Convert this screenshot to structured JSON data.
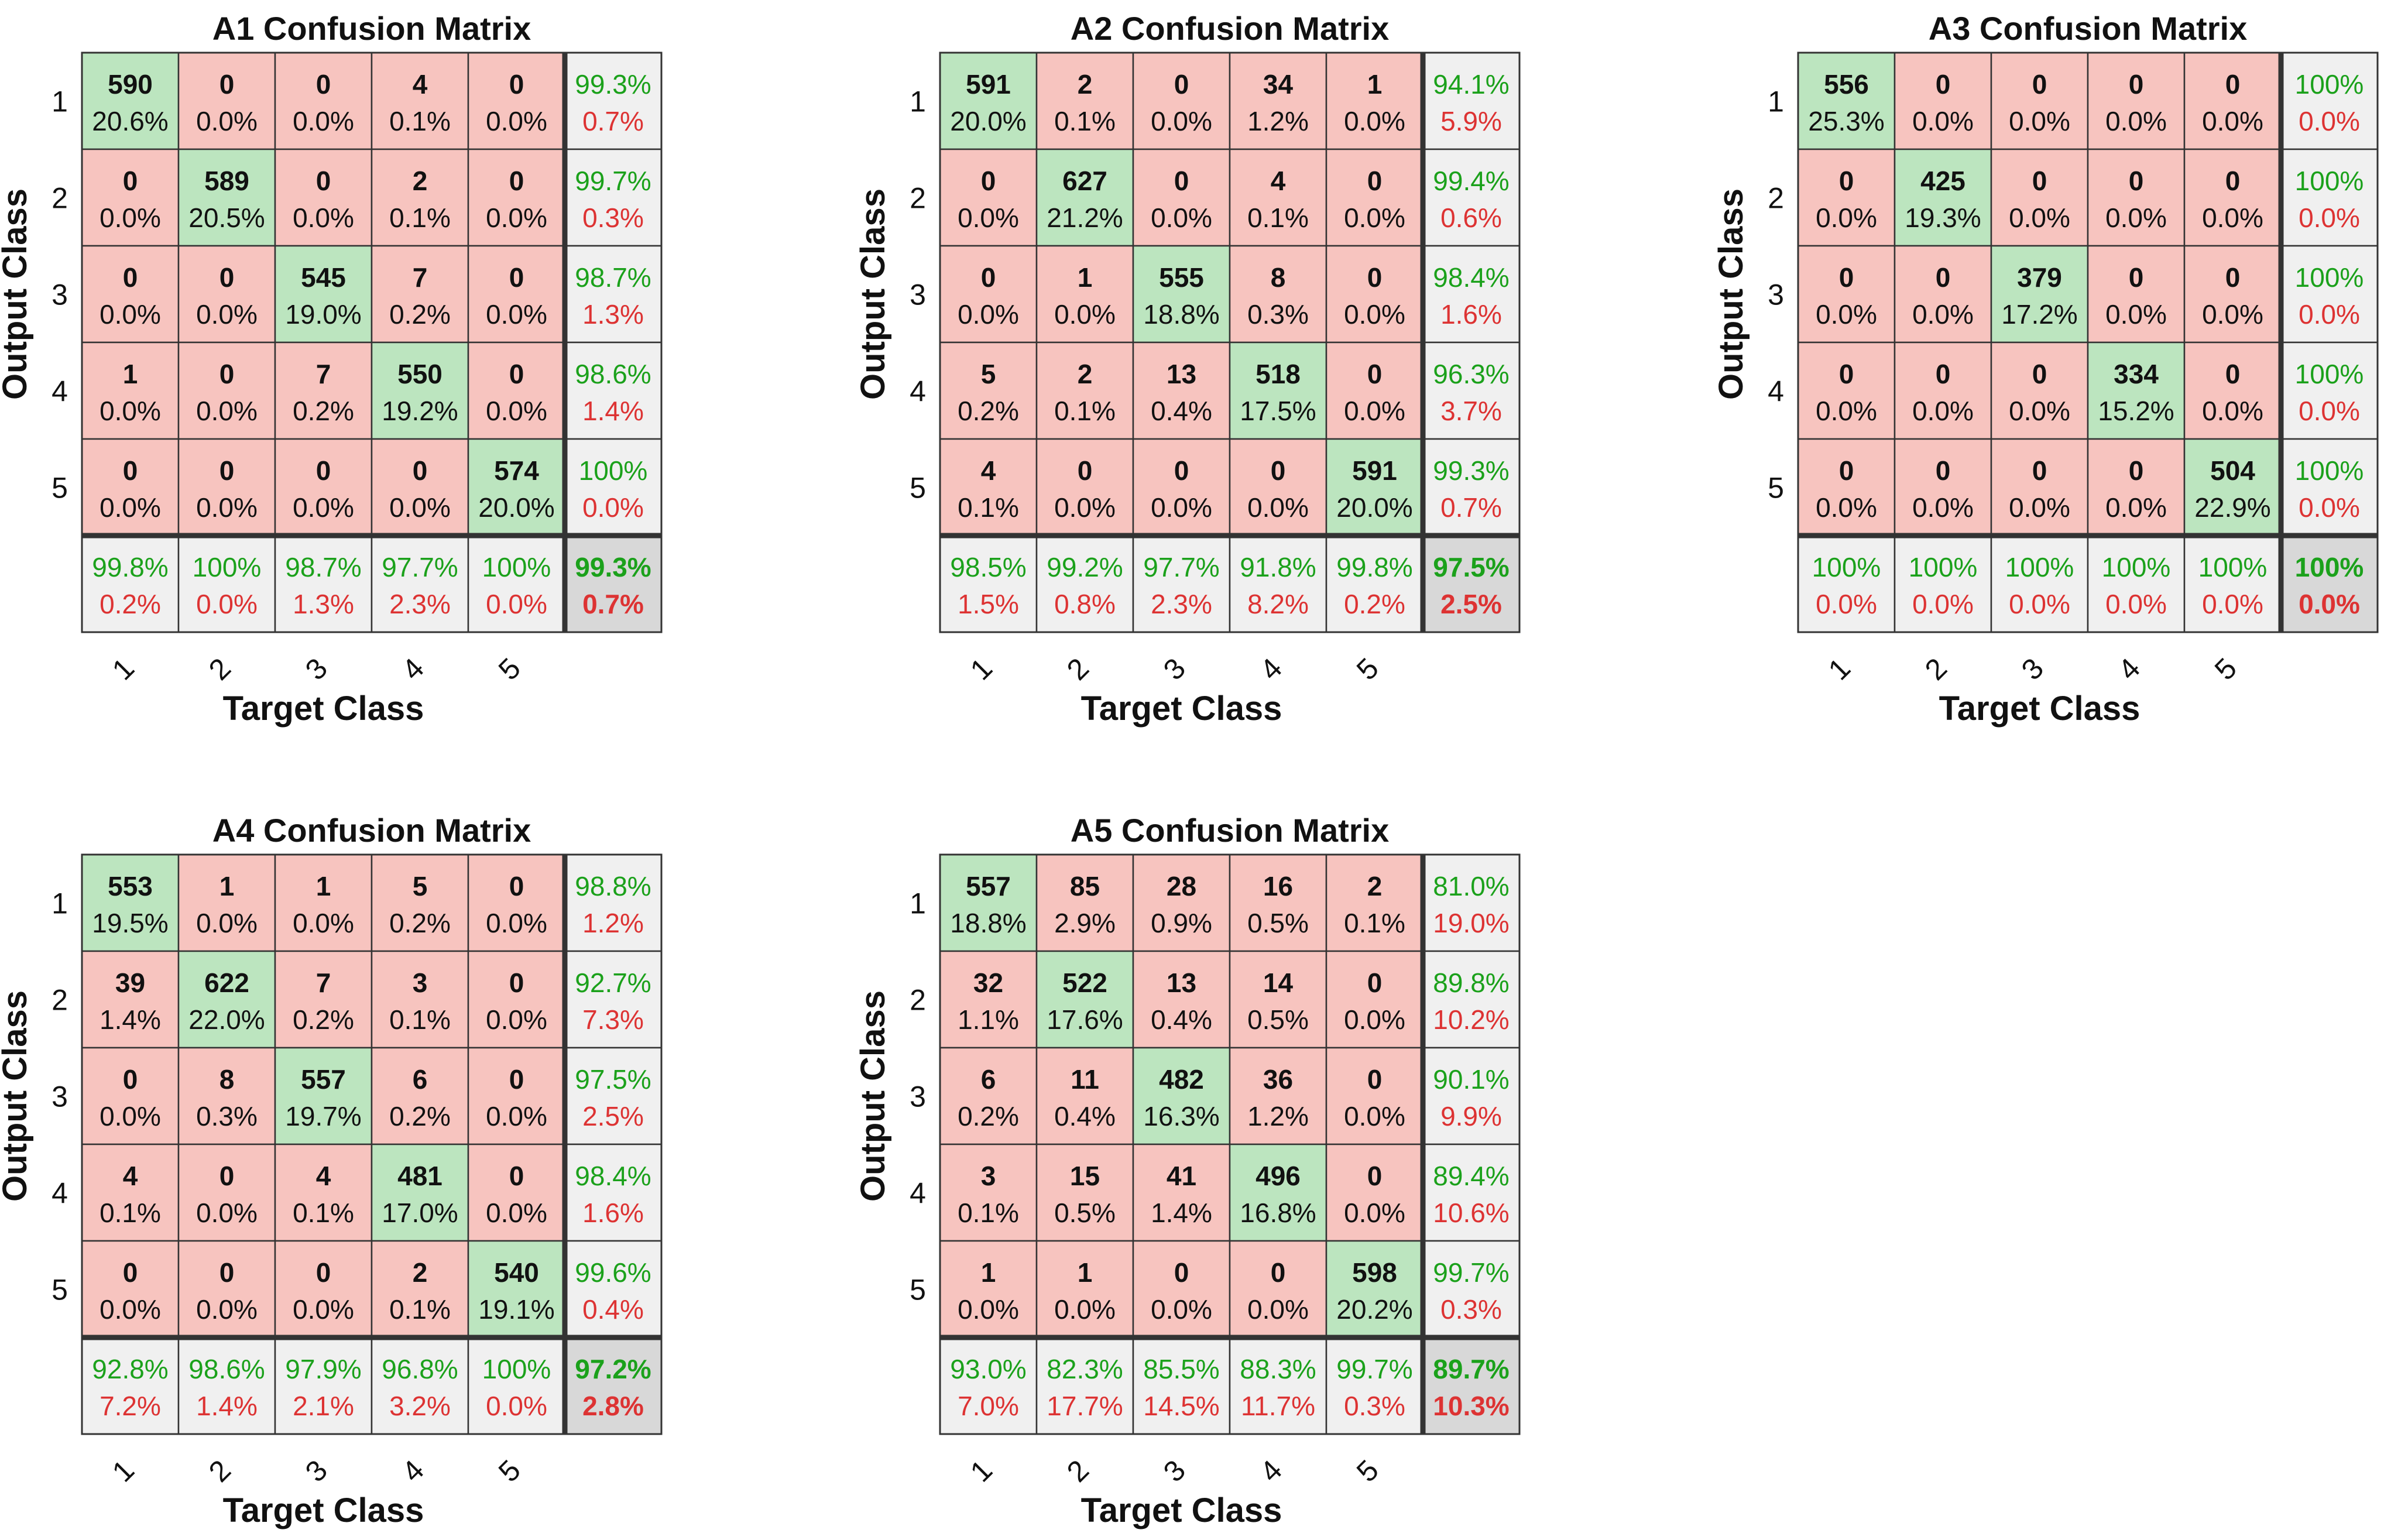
{
  "colors": {
    "diag_bg": "#bce5bf",
    "off_bg": "#f7c4bf",
    "summary_bg": "#f0f0f0",
    "total_bg": "#d8d8d8",
    "good_text": "#1ba11b",
    "bad_text": "#dd3333",
    "text": "#111111",
    "grid": "#333333"
  },
  "chart_data": [
    {
      "type": "table",
      "title": "A1 Confusion Matrix",
      "xlabel": "Target Class",
      "ylabel": "Output Class",
      "classes": [
        "1",
        "2",
        "3",
        "4",
        "5"
      ],
      "counts": [
        [
          590,
          0,
          0,
          4,
          0
        ],
        [
          0,
          589,
          0,
          2,
          0
        ],
        [
          0,
          0,
          545,
          7,
          0
        ],
        [
          1,
          0,
          7,
          550,
          0
        ],
        [
          0,
          0,
          0,
          0,
          574
        ]
      ],
      "percents": [
        [
          "20.6%",
          "0.0%",
          "0.0%",
          "0.1%",
          "0.0%"
        ],
        [
          "0.0%",
          "20.5%",
          "0.0%",
          "0.1%",
          "0.0%"
        ],
        [
          "0.0%",
          "0.0%",
          "19.0%",
          "0.2%",
          "0.0%"
        ],
        [
          "0.0%",
          "0.0%",
          "0.2%",
          "19.2%",
          "0.0%"
        ],
        [
          "0.0%",
          "0.0%",
          "0.0%",
          "0.0%",
          "20.0%"
        ]
      ],
      "row_summary": [
        [
          "99.3%",
          "0.7%"
        ],
        [
          "99.7%",
          "0.3%"
        ],
        [
          "98.7%",
          "1.3%"
        ],
        [
          "98.6%",
          "1.4%"
        ],
        [
          "100%",
          "0.0%"
        ]
      ],
      "col_summary": [
        [
          "99.8%",
          "0.2%"
        ],
        [
          "100%",
          "0.0%"
        ],
        [
          "98.7%",
          "1.3%"
        ],
        [
          "97.7%",
          "2.3%"
        ],
        [
          "100%",
          "0.0%"
        ]
      ],
      "overall": [
        "99.3%",
        "0.7%"
      ]
    },
    {
      "type": "table",
      "title": "A2 Confusion Matrix",
      "xlabel": "Target Class",
      "ylabel": "Output Class",
      "classes": [
        "1",
        "2",
        "3",
        "4",
        "5"
      ],
      "counts": [
        [
          591,
          2,
          0,
          34,
          1
        ],
        [
          0,
          627,
          0,
          4,
          0
        ],
        [
          0,
          1,
          555,
          8,
          0
        ],
        [
          5,
          2,
          13,
          518,
          0
        ],
        [
          4,
          0,
          0,
          0,
          591
        ]
      ],
      "percents": [
        [
          "20.0%",
          "0.1%",
          "0.0%",
          "1.2%",
          "0.0%"
        ],
        [
          "0.0%",
          "21.2%",
          "0.0%",
          "0.1%",
          "0.0%"
        ],
        [
          "0.0%",
          "0.0%",
          "18.8%",
          "0.3%",
          "0.0%"
        ],
        [
          "0.2%",
          "0.1%",
          "0.4%",
          "17.5%",
          "0.0%"
        ],
        [
          "0.1%",
          "0.0%",
          "0.0%",
          "0.0%",
          "20.0%"
        ]
      ],
      "row_summary": [
        [
          "94.1%",
          "5.9%"
        ],
        [
          "99.4%",
          "0.6%"
        ],
        [
          "98.4%",
          "1.6%"
        ],
        [
          "96.3%",
          "3.7%"
        ],
        [
          "99.3%",
          "0.7%"
        ]
      ],
      "col_summary": [
        [
          "98.5%",
          "1.5%"
        ],
        [
          "99.2%",
          "0.8%"
        ],
        [
          "97.7%",
          "2.3%"
        ],
        [
          "91.8%",
          "8.2%"
        ],
        [
          "99.8%",
          "0.2%"
        ]
      ],
      "overall": [
        "97.5%",
        "2.5%"
      ]
    },
    {
      "type": "table",
      "title": "A3 Confusion Matrix",
      "xlabel": "Target Class",
      "ylabel": "Output Class",
      "classes": [
        "1",
        "2",
        "3",
        "4",
        "5"
      ],
      "counts": [
        [
          556,
          0,
          0,
          0,
          0
        ],
        [
          0,
          425,
          0,
          0,
          0
        ],
        [
          0,
          0,
          379,
          0,
          0
        ],
        [
          0,
          0,
          0,
          334,
          0
        ],
        [
          0,
          0,
          0,
          0,
          504
        ]
      ],
      "percents": [
        [
          "25.3%",
          "0.0%",
          "0.0%",
          "0.0%",
          "0.0%"
        ],
        [
          "0.0%",
          "19.3%",
          "0.0%",
          "0.0%",
          "0.0%"
        ],
        [
          "0.0%",
          "0.0%",
          "17.2%",
          "0.0%",
          "0.0%"
        ],
        [
          "0.0%",
          "0.0%",
          "0.0%",
          "15.2%",
          "0.0%"
        ],
        [
          "0.0%",
          "0.0%",
          "0.0%",
          "0.0%",
          "22.9%"
        ]
      ],
      "row_summary": [
        [
          "100%",
          "0.0%"
        ],
        [
          "100%",
          "0.0%"
        ],
        [
          "100%",
          "0.0%"
        ],
        [
          "100%",
          "0.0%"
        ],
        [
          "100%",
          "0.0%"
        ]
      ],
      "col_summary": [
        [
          "100%",
          "0.0%"
        ],
        [
          "100%",
          "0.0%"
        ],
        [
          "100%",
          "0.0%"
        ],
        [
          "100%",
          "0.0%"
        ],
        [
          "100%",
          "0.0%"
        ]
      ],
      "overall": [
        "100%",
        "0.0%"
      ]
    },
    {
      "type": "table",
      "title": "A4 Confusion Matrix",
      "xlabel": "Target Class",
      "ylabel": "Output Class",
      "classes": [
        "1",
        "2",
        "3",
        "4",
        "5"
      ],
      "counts": [
        [
          553,
          1,
          1,
          5,
          0
        ],
        [
          39,
          622,
          7,
          3,
          0
        ],
        [
          0,
          8,
          557,
          6,
          0
        ],
        [
          4,
          0,
          4,
          481,
          0
        ],
        [
          0,
          0,
          0,
          2,
          540
        ]
      ],
      "percents": [
        [
          "19.5%",
          "0.0%",
          "0.0%",
          "0.2%",
          "0.0%"
        ],
        [
          "1.4%",
          "22.0%",
          "0.2%",
          "0.1%",
          "0.0%"
        ],
        [
          "0.0%",
          "0.3%",
          "19.7%",
          "0.2%",
          "0.0%"
        ],
        [
          "0.1%",
          "0.0%",
          "0.1%",
          "17.0%",
          "0.0%"
        ],
        [
          "0.0%",
          "0.0%",
          "0.0%",
          "0.1%",
          "19.1%"
        ]
      ],
      "row_summary": [
        [
          "98.8%",
          "1.2%"
        ],
        [
          "92.7%",
          "7.3%"
        ],
        [
          "97.5%",
          "2.5%"
        ],
        [
          "98.4%",
          "1.6%"
        ],
        [
          "99.6%",
          "0.4%"
        ]
      ],
      "col_summary": [
        [
          "92.8%",
          "7.2%"
        ],
        [
          "98.6%",
          "1.4%"
        ],
        [
          "97.9%",
          "2.1%"
        ],
        [
          "96.8%",
          "3.2%"
        ],
        [
          "100%",
          "0.0%"
        ]
      ],
      "overall": [
        "97.2%",
        "2.8%"
      ]
    },
    {
      "type": "table",
      "title": "A5 Confusion Matrix",
      "xlabel": "Target Class",
      "ylabel": "Output Class",
      "classes": [
        "1",
        "2",
        "3",
        "4",
        "5"
      ],
      "counts": [
        [
          557,
          85,
          28,
          16,
          2
        ],
        [
          32,
          522,
          13,
          14,
          0
        ],
        [
          6,
          11,
          482,
          36,
          0
        ],
        [
          3,
          15,
          41,
          496,
          0
        ],
        [
          1,
          1,
          0,
          0,
          598
        ]
      ],
      "percents": [
        [
          "18.8%",
          "2.9%",
          "0.9%",
          "0.5%",
          "0.1%"
        ],
        [
          "1.1%",
          "17.6%",
          "0.4%",
          "0.5%",
          "0.0%"
        ],
        [
          "0.2%",
          "0.4%",
          "16.3%",
          "1.2%",
          "0.0%"
        ],
        [
          "0.1%",
          "0.5%",
          "1.4%",
          "16.8%",
          "0.0%"
        ],
        [
          "0.0%",
          "0.0%",
          "0.0%",
          "0.0%",
          "20.2%"
        ]
      ],
      "row_summary": [
        [
          "81.0%",
          "19.0%"
        ],
        [
          "89.8%",
          "10.2%"
        ],
        [
          "90.1%",
          "9.9%"
        ],
        [
          "89.4%",
          "10.6%"
        ],
        [
          "99.7%",
          "0.3%"
        ]
      ],
      "col_summary": [
        [
          "93.0%",
          "7.0%"
        ],
        [
          "82.3%",
          "17.7%"
        ],
        [
          "85.5%",
          "14.5%"
        ],
        [
          "88.3%",
          "11.7%"
        ],
        [
          "99.7%",
          "0.3%"
        ]
      ],
      "overall": [
        "89.7%",
        "10.3%"
      ]
    }
  ]
}
